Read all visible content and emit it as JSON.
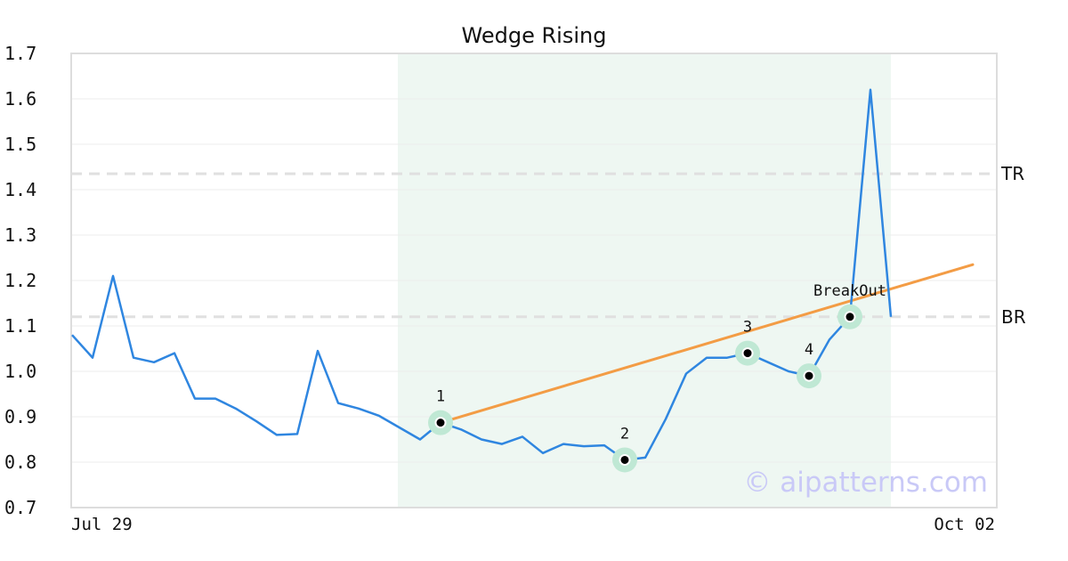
{
  "chart_data": {
    "type": "line",
    "title": "Wedge Rising",
    "xlabel": "",
    "ylabel": "",
    "ylim": [
      0.7,
      1.7
    ],
    "yticks": [
      "0.7",
      "0.8",
      "0.9",
      "1.0",
      "1.1",
      "1.2",
      "1.3",
      "1.4",
      "1.5",
      "1.6",
      "1.7"
    ],
    "x_tick_labels": [
      "Jul 29",
      "Oct 02"
    ],
    "grid": "horizontal",
    "num_points": 41,
    "series": [
      {
        "color": "#2f86e0",
        "values": [
          1.08,
          1.03,
          1.21,
          1.03,
          1.02,
          1.04,
          0.94,
          0.94,
          0.918,
          0.89,
          0.86,
          0.862,
          1.045,
          0.93,
          0.918,
          0.902,
          0.876,
          0.85,
          0.887,
          0.872,
          0.85,
          0.84,
          0.856,
          0.82,
          0.84,
          0.835,
          0.837,
          0.805,
          0.81,
          0.895,
          0.995,
          1.03,
          1.03,
          1.04,
          1.02,
          1.0,
          0.99,
          1.07,
          1.12,
          1.62,
          1.12
        ]
      }
    ],
    "shaded_region": {
      "from_index": 16,
      "to_index": 40,
      "color": "#eef7f2"
    },
    "reference_lines": [
      {
        "label": "TR",
        "value": 1.435
      },
      {
        "label": "BR",
        "value": 1.12
      }
    ],
    "trendline": {
      "color": "#f39c45",
      "from": {
        "index": 18,
        "value": 0.887
      },
      "to": {
        "index": 44,
        "value": 1.235
      }
    },
    "pattern_points": [
      {
        "label": "1",
        "index": 18,
        "value": 0.887
      },
      {
        "label": "2",
        "index": 27,
        "value": 0.805
      },
      {
        "label": "3",
        "index": 33,
        "value": 1.04
      },
      {
        "label": "4",
        "index": 36,
        "value": 0.99
      },
      {
        "label": "BreakOut",
        "index": 38,
        "value": 1.12
      }
    ],
    "watermark": "© aipatterns.com"
  }
}
